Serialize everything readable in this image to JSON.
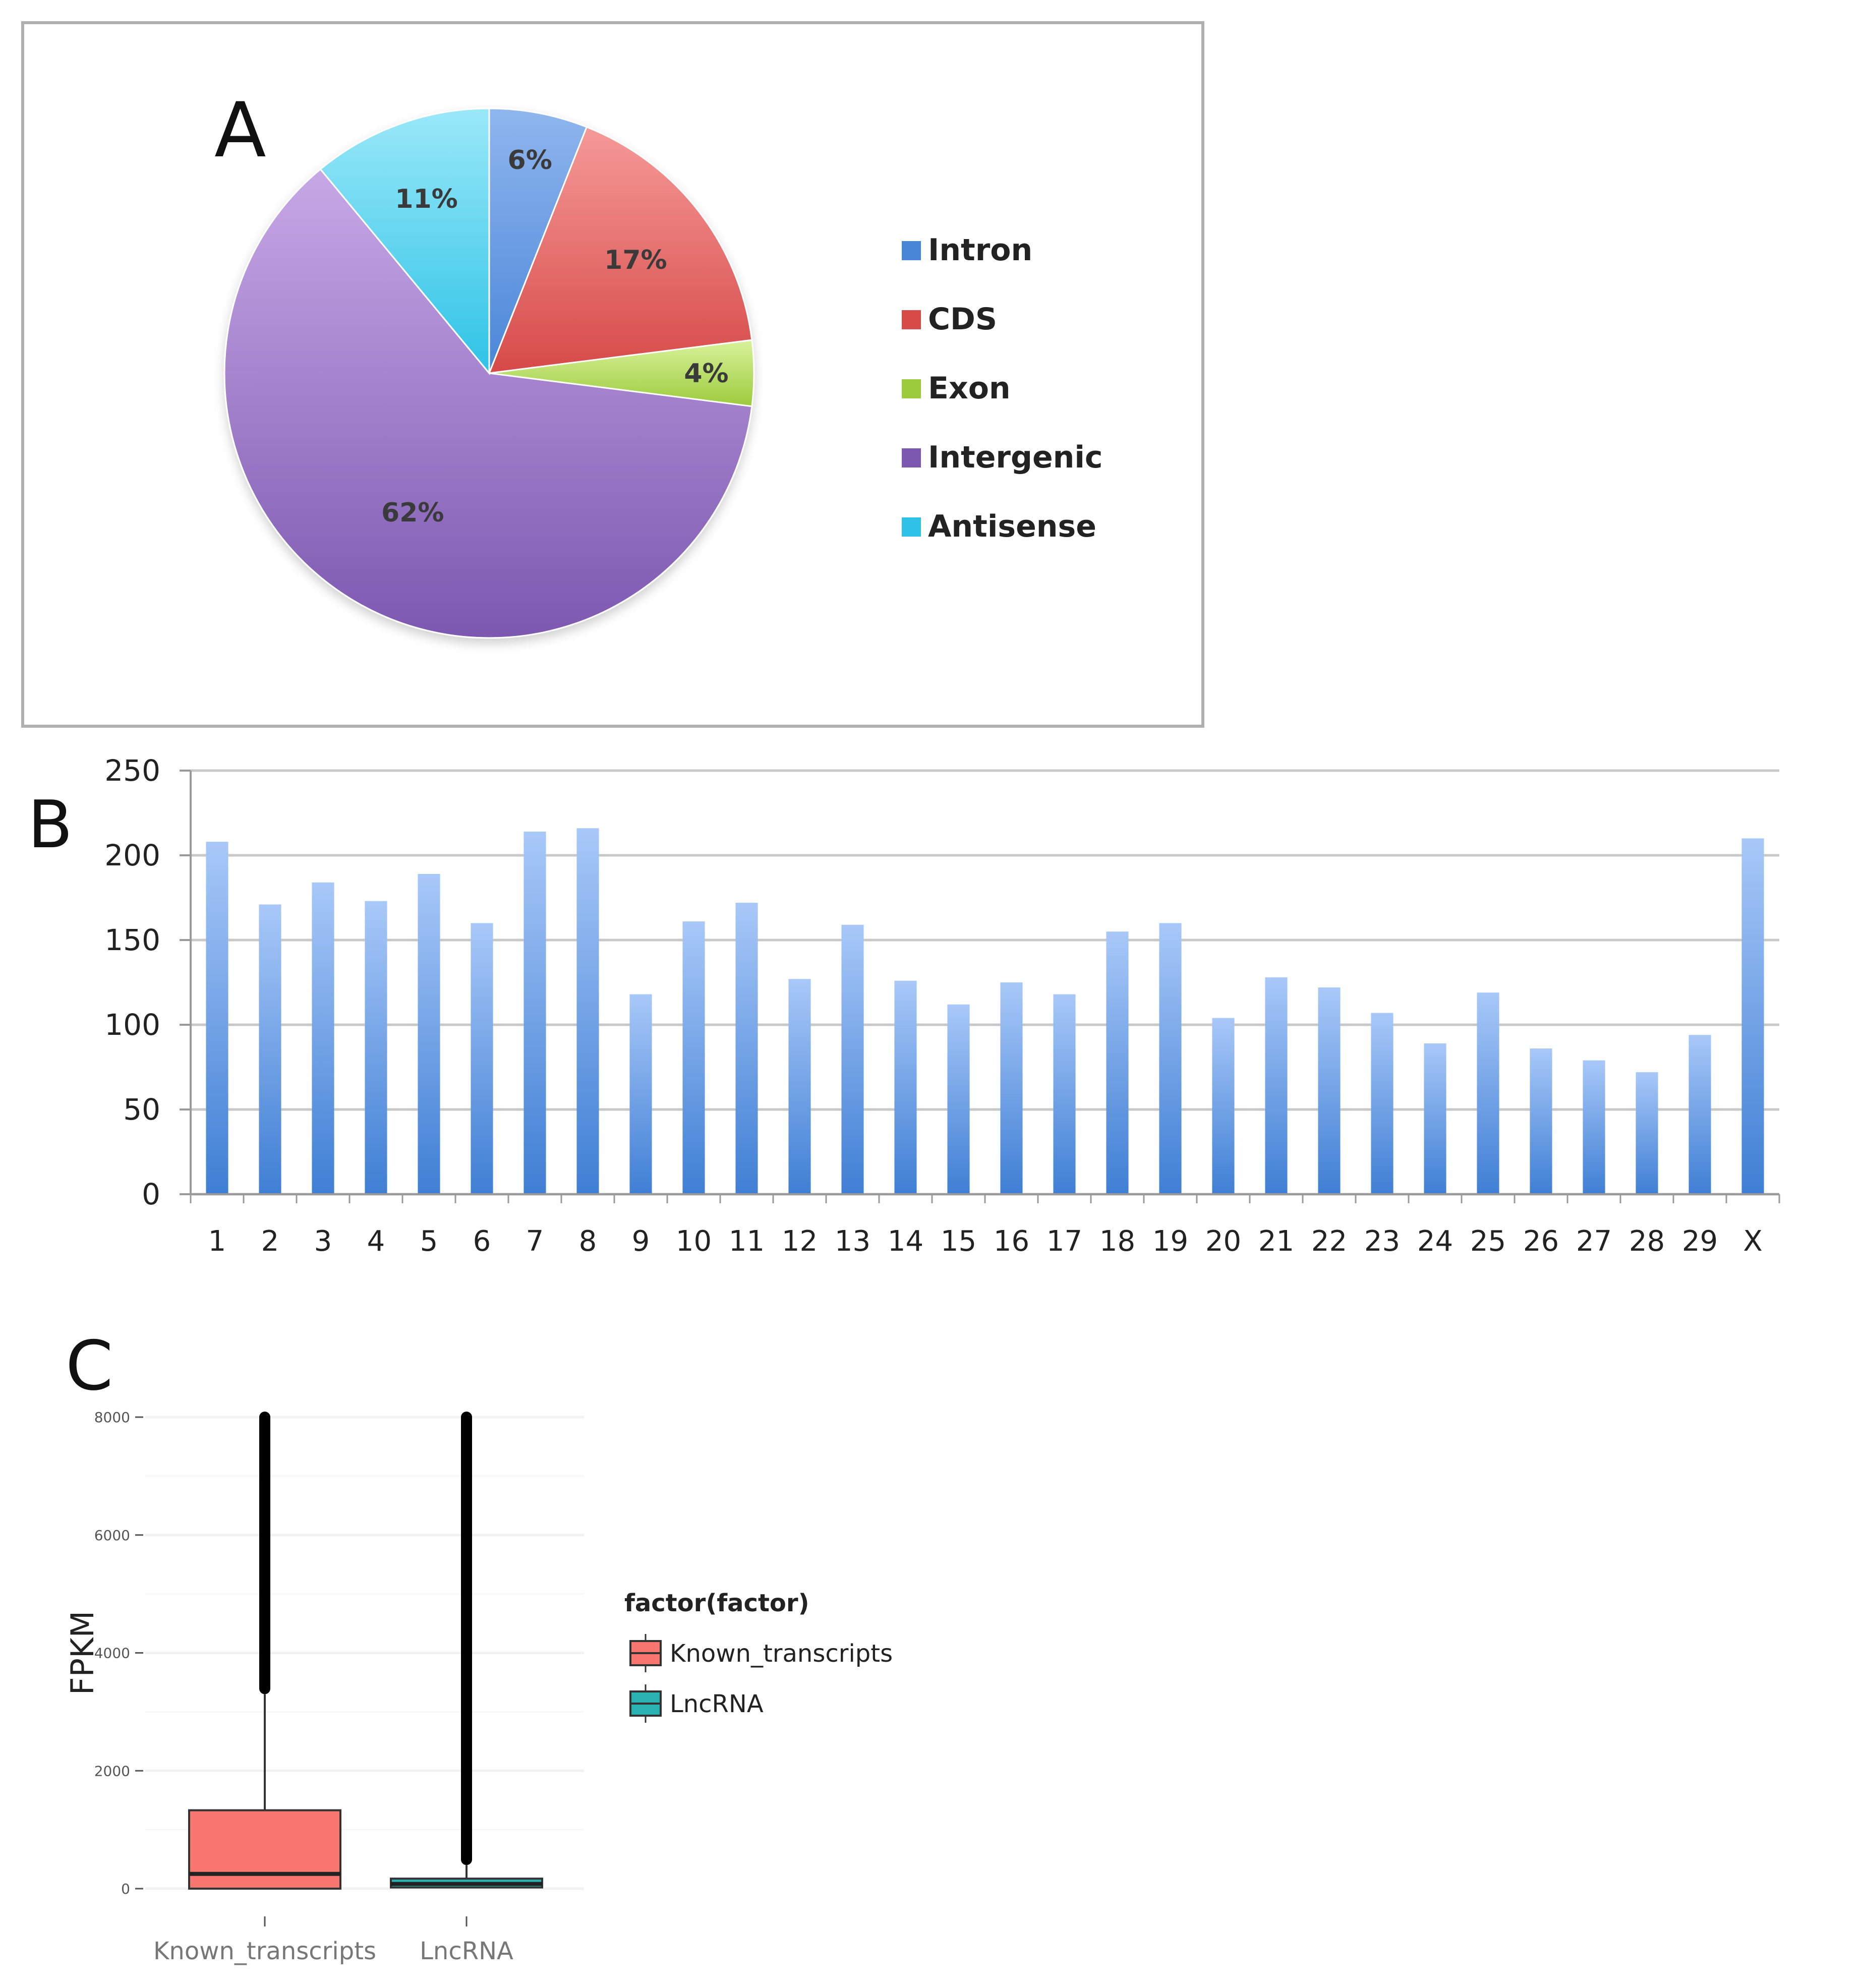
{
  "chart_data": [
    {
      "panel": "A",
      "type": "pie",
      "title": "",
      "slices": [
        {
          "label": "Intron",
          "value": 6,
          "display": "6%"
        },
        {
          "label": "CDS",
          "value": 17,
          "display": "17%"
        },
        {
          "label": "Exon",
          "value": 4,
          "display": "4%"
        },
        {
          "label": "Intergenic",
          "value": 62,
          "display": "62%"
        },
        {
          "label": "Antisense",
          "value": 11,
          "display": "11%"
        }
      ],
      "colors": {
        "Intron": [
          "#8fb6ee",
          "#4a86d8"
        ],
        "CDS": [
          "#f59a98",
          "#d64a48"
        ],
        "Exon": [
          "#d9f29a",
          "#9ccb3d"
        ],
        "Intergenic": [
          "#c7a8e6",
          "#7c58b0"
        ],
        "Antisense": [
          "#9ae8f8",
          "#2ec3e6"
        ]
      },
      "legend_position": "right"
    },
    {
      "panel": "B",
      "type": "bar",
      "title": "",
      "xlabel": "",
      "ylabel": "",
      "ylim": [
        0,
        250
      ],
      "yticks": [
        0,
        50,
        100,
        150,
        200,
        250
      ],
      "categories": [
        "1",
        "2",
        "3",
        "4",
        "5",
        "6",
        "7",
        "8",
        "9",
        "10",
        "11",
        "12",
        "13",
        "14",
        "15",
        "16",
        "17",
        "18",
        "19",
        "20",
        "21",
        "22",
        "23",
        "24",
        "25",
        "26",
        "27",
        "28",
        "29",
        "X"
      ],
      "values": [
        208,
        171,
        184,
        173,
        189,
        160,
        214,
        216,
        118,
        161,
        172,
        127,
        159,
        126,
        112,
        125,
        118,
        155,
        160,
        104,
        128,
        122,
        107,
        89,
        119,
        86,
        79,
        72,
        94,
        210
      ],
      "colors": {
        "bar_top": "#a8c8f8",
        "bar_bottom": "#3f7fd4"
      },
      "grid": true
    },
    {
      "panel": "C",
      "type": "box",
      "title": "",
      "xlabel": "",
      "ylabel": "FPKM",
      "ylim": [
        0,
        8000
      ],
      "yticks": [
        0,
        2000,
        4000,
        6000,
        8000
      ],
      "categories": [
        "Known_transcripts",
        "LncRNA"
      ],
      "boxes": [
        {
          "name": "Known_transcripts",
          "q1": 0,
          "median": 250,
          "q3": 1330,
          "whisker_low": 0,
          "whisker_high": 3300,
          "outliers_min": 3300,
          "outliers_max": 8000,
          "color": "#f8766d"
        },
        {
          "name": "LncRNA",
          "q1": 20,
          "median": 80,
          "q3": 170,
          "whisker_low": 0,
          "whisker_high": 400,
          "outliers_min": 400,
          "outliers_max": 8000,
          "color": "#2bb3b3"
        }
      ],
      "legend_title": "factor(factor)",
      "legend_position": "right"
    }
  ],
  "labels": {
    "panel_a": "A",
    "panel_b": "B",
    "panel_c": "C"
  }
}
